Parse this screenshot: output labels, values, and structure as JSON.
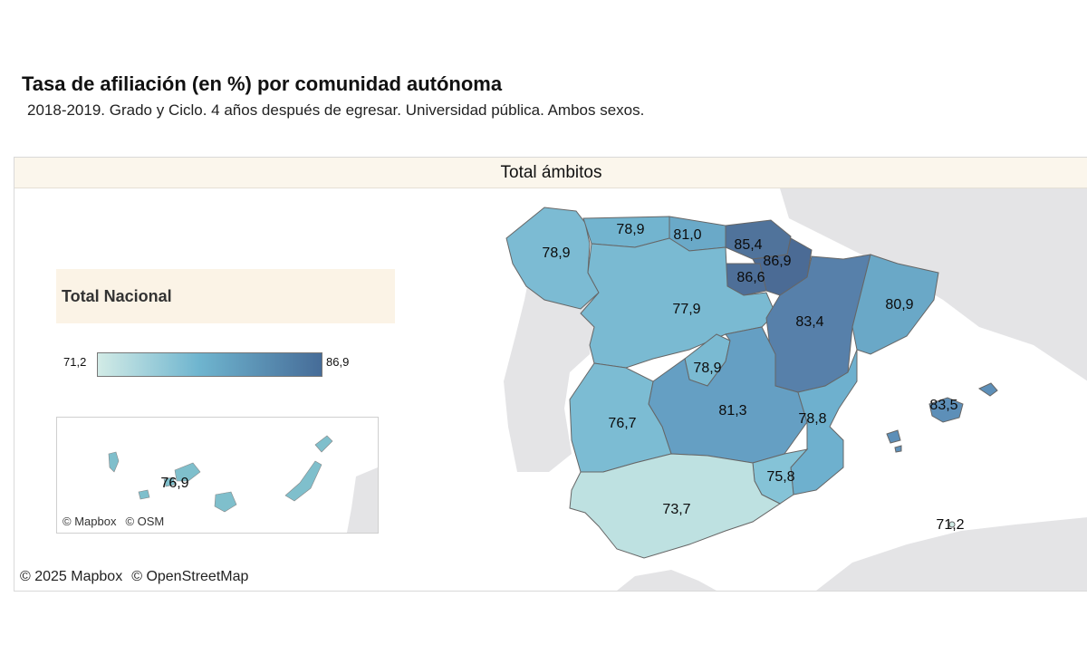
{
  "title": "Tasa de afiliación (en %) por comunidad autónoma",
  "subtitle": "2018-2019. Grado y Ciclo. 4 años después de egresar. Universidad pública. Ambos sexos.",
  "panel_header": "Total ámbitos",
  "legend": {
    "title": "Total Nacional",
    "min": "71,2",
    "max": "86,9",
    "color_low": "#d2ebe6",
    "color_high": "#466c98"
  },
  "regions": {
    "galicia": "78,9",
    "asturias": "78,9",
    "cantabria": "81,0",
    "pais_vasco": "85,4",
    "navarra": "86,9",
    "la_rioja": "86,6",
    "castilla_leon": "77,9",
    "aragon": "83,4",
    "cataluna": "80,9",
    "madrid": "78,9",
    "castilla_la_mancha": "81,3",
    "extremadura": "76,7",
    "valencia": "78,8",
    "baleares": "83,5",
    "murcia": "75,8",
    "andalucia": "73,7",
    "ceuta_melilla": "71,2",
    "canarias": "76,9"
  },
  "inset_attribution": [
    "© Mapbox",
    "© OSM"
  ],
  "attribution": [
    "© 2025 Mapbox",
    "© OpenStreetMap"
  ]
}
